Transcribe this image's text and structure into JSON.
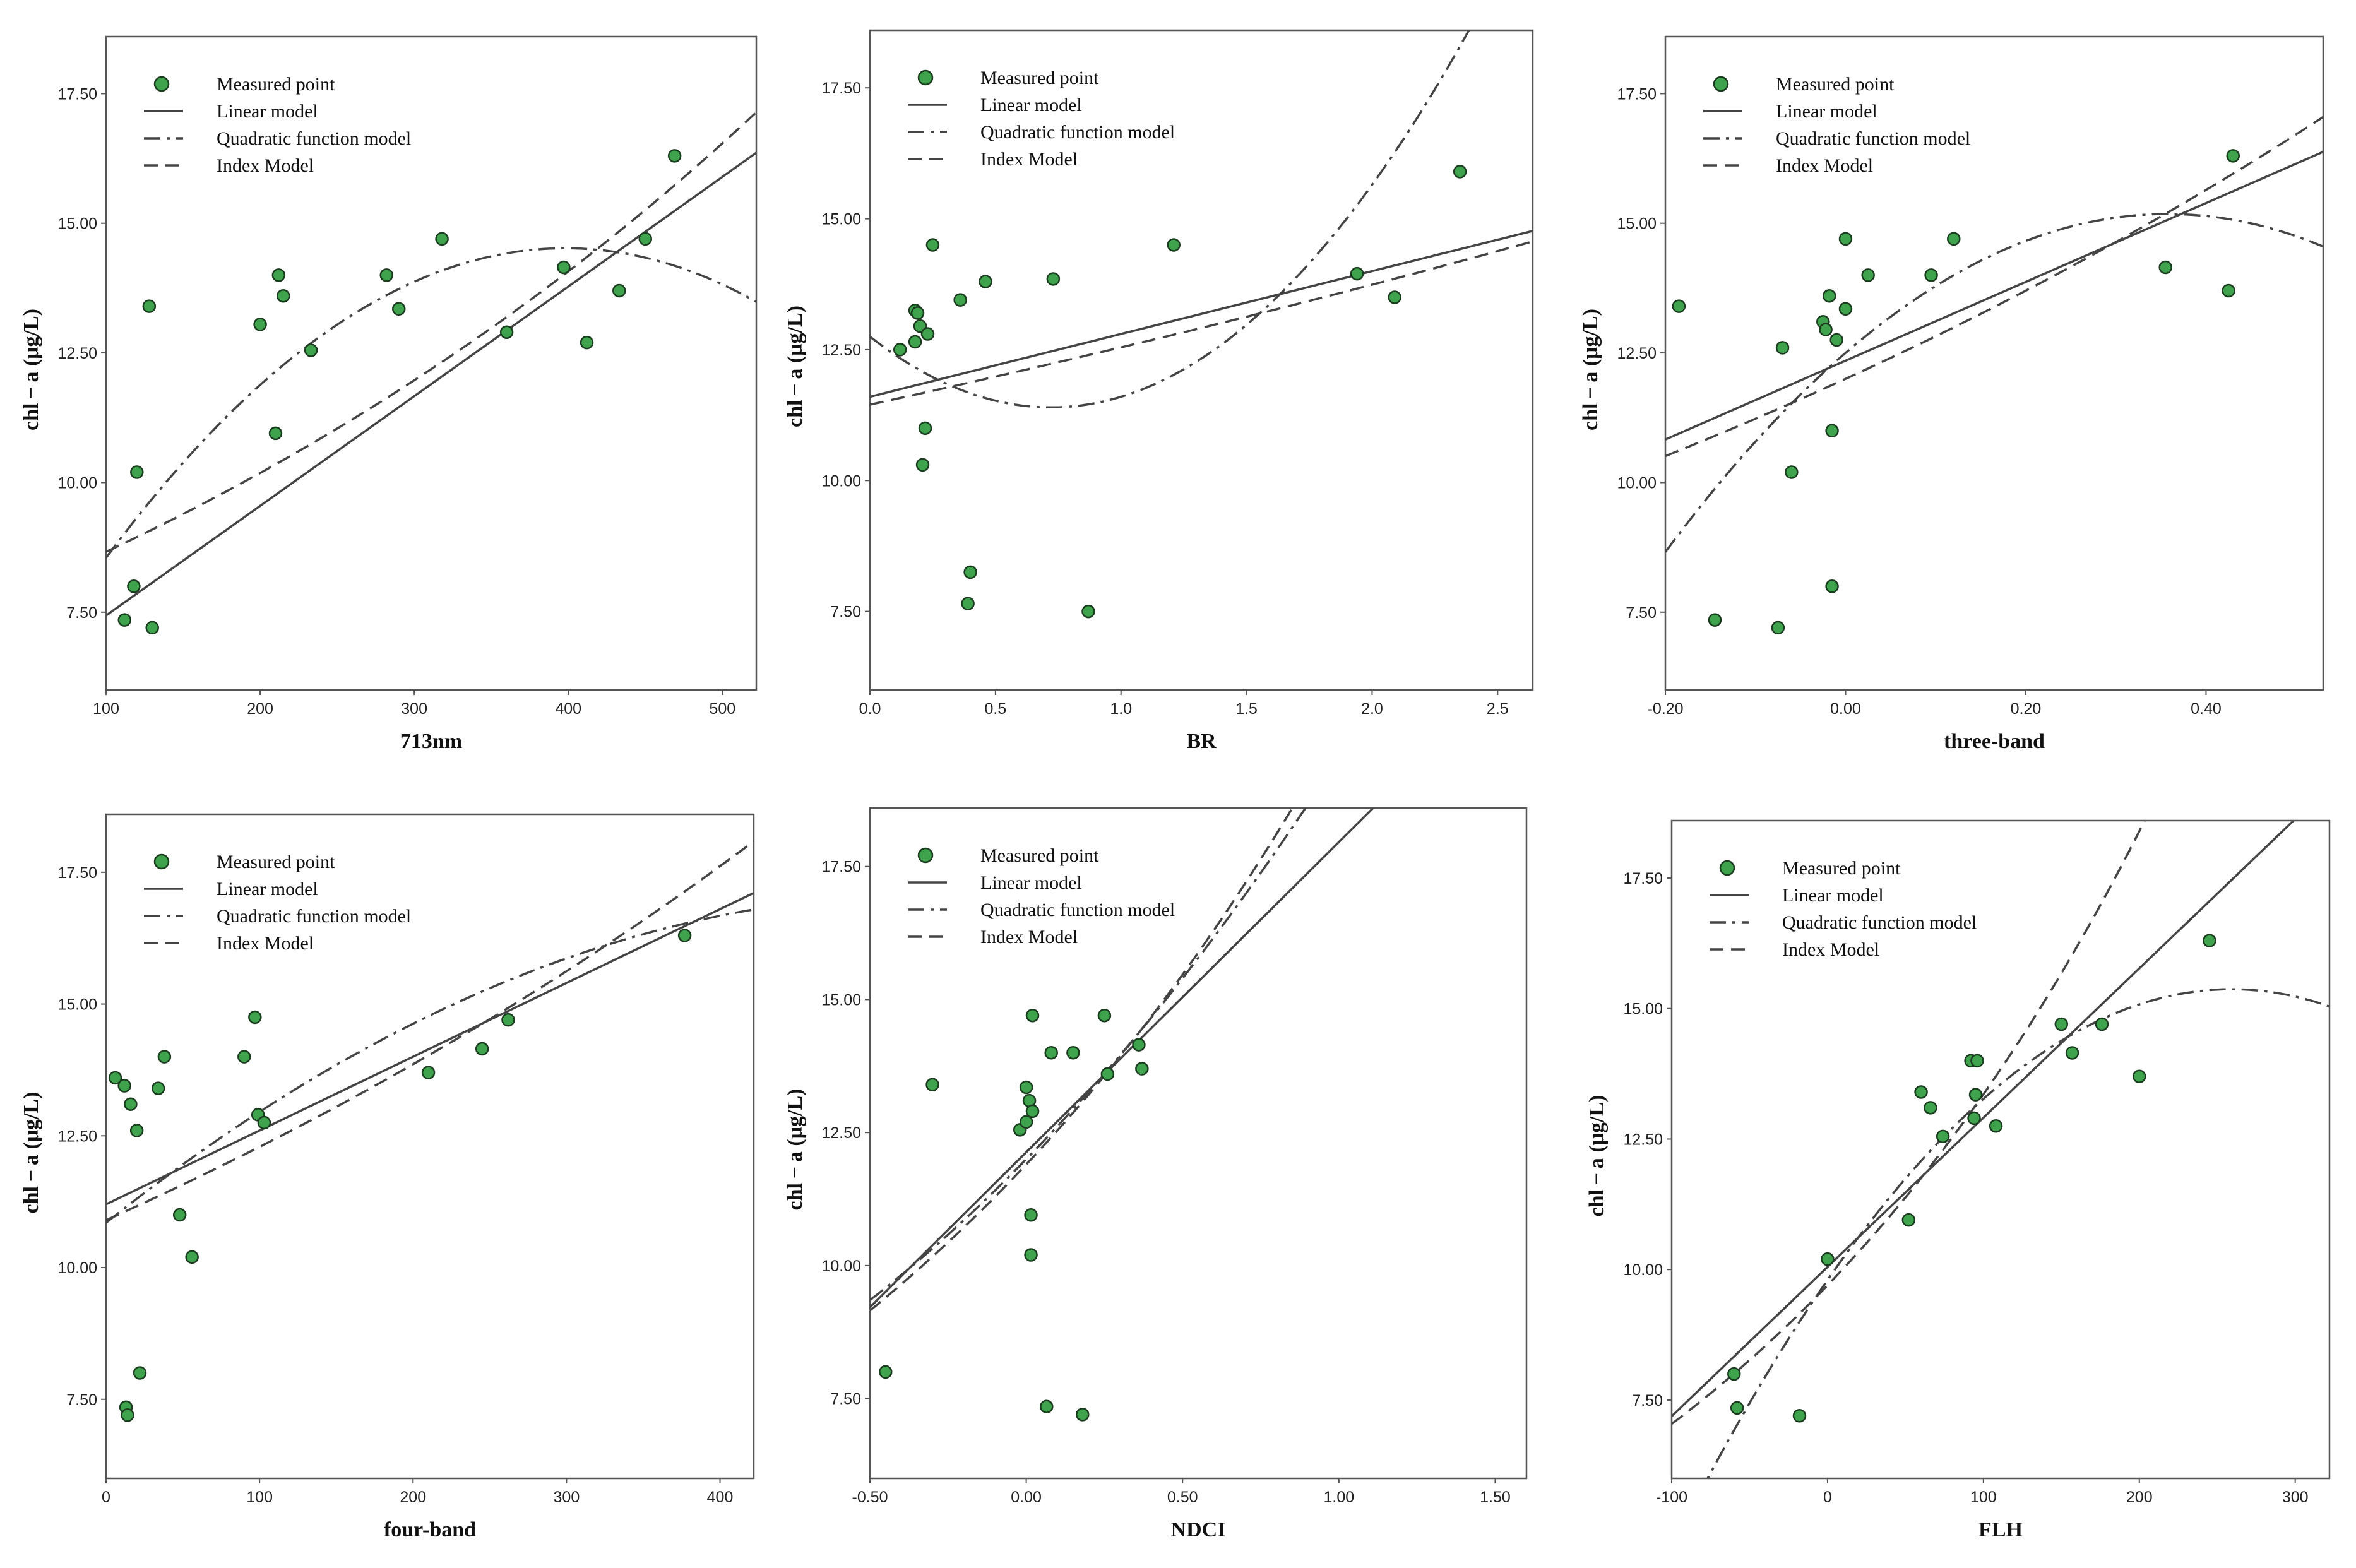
{
  "figure": {
    "legend_labels": [
      "Measured point",
      "Linear model",
      "Quadratic function model",
      "Index Model"
    ],
    "colors": {
      "point_fill": "#3fa34d",
      "point_stroke": "#1b3d1f",
      "line": "#444444",
      "frame": "#555555",
      "grid": "#ffffff"
    }
  },
  "chart_data": [
    {
      "type": "scatter",
      "title": "",
      "xlabel": "713nm",
      "ylabel": "chl − a (μg/L)",
      "xlim": [
        100,
        522
      ],
      "ylim": [
        6.0,
        18.6
      ],
      "xticks": [
        100,
        200,
        300,
        400,
        500
      ],
      "xtick_labels": [
        "100",
        "200",
        "300",
        "400",
        "500"
      ],
      "yticks": [
        7.5,
        10.0,
        12.5,
        15.0,
        17.5
      ],
      "ytick_labels": [
        "7.50",
        "10.00",
        "12.50",
        "15.00",
        "17.50"
      ],
      "legend_position": "top-left",
      "points": {
        "x": [
          112,
          118,
          120,
          128,
          130,
          200,
          210,
          212,
          215,
          233,
          282,
          290,
          318,
          360,
          397,
          412,
          433,
          450,
          469
        ],
        "y": [
          7.35,
          8.0,
          10.2,
          13.4,
          7.2,
          13.05,
          10.95,
          14.0,
          13.6,
          12.55,
          14.0,
          13.35,
          14.7,
          12.9,
          14.15,
          12.7,
          13.7,
          14.7,
          16.3
        ]
      },
      "models": {
        "linear": {
          "a": 5.32,
          "b": 0.02115
        },
        "quadratic": {
          "a": 3.87,
          "b": 0.0535,
          "c": -6.72e-05
        },
        "index": {
          "a": 7.37,
          "b": 0.001617
        }
      }
    },
    {
      "type": "scatter",
      "title": "",
      "xlabel": "BR",
      "ylabel": "chl − a (μg/L)",
      "xlim": [
        0.0,
        2.64
      ],
      "ylim": [
        6.0,
        18.6
      ],
      "xticks": [
        0.0,
        0.5,
        1.0,
        1.5,
        2.0,
        2.5
      ],
      "xtick_labels": [
        "0.0",
        "0.5",
        "1.0",
        "1.5",
        "2.0",
        "2.5"
      ],
      "yticks": [
        7.5,
        10.0,
        12.5,
        15.0,
        17.5
      ],
      "ytick_labels": [
        "7.50",
        "10.00",
        "12.50",
        "15.00",
        "17.50"
      ],
      "legend_position": "top-left",
      "points": {
        "x": [
          0.12,
          0.18,
          0.18,
          0.19,
          0.2,
          0.21,
          0.22,
          0.23,
          0.25,
          0.36,
          0.39,
          0.4,
          0.46,
          0.73,
          0.87,
          1.21,
          1.94,
          2.09,
          2.35
        ],
        "y": [
          12.5,
          13.25,
          12.65,
          13.2,
          12.95,
          10.3,
          11.0,
          12.8,
          14.5,
          13.45,
          7.65,
          8.25,
          13.8,
          13.85,
          7.5,
          14.5,
          13.95,
          13.5,
          15.9
        ]
      },
      "models": {
        "linear": {
          "a": 11.6,
          "b": 1.2
        },
        "quadratic": {
          "a": 12.75,
          "b": -3.75,
          "c": 2.6
        },
        "index": {
          "a": 11.45,
          "b": 0.0912
        }
      }
    },
    {
      "type": "scatter",
      "title": "",
      "xlabel": "three-band",
      "ylabel": "chl − a (μg/L)",
      "xlim": [
        -0.2,
        0.53
      ],
      "ylim": [
        6.0,
        18.6
      ],
      "xticks": [
        -0.2,
        0.0,
        0.2,
        0.4
      ],
      "xtick_labels": [
        "-0.20",
        "0.00",
        "0.20",
        "0.40"
      ],
      "yticks": [
        7.5,
        10.0,
        12.5,
        15.0,
        17.5
      ],
      "ytick_labels": [
        "7.50",
        "10.00",
        "12.50",
        "15.00",
        "17.50"
      ],
      "legend_position": "top-left",
      "points": {
        "x": [
          -0.185,
          -0.145,
          -0.075,
          -0.07,
          -0.06,
          -0.025,
          -0.022,
          -0.018,
          -0.015,
          -0.015,
          -0.01,
          0.0,
          0.0,
          0.025,
          0.095,
          0.12,
          0.355,
          0.425,
          0.43
        ],
        "y": [
          13.4,
          7.35,
          7.2,
          12.6,
          10.2,
          13.1,
          12.95,
          13.6,
          11.0,
          8.0,
          12.75,
          13.35,
          14.7,
          14.0,
          14.0,
          14.7,
          14.15,
          13.7,
          16.3
        ]
      },
      "models": {
        "linear": {
          "a": 12.35,
          "b": 7.6
        },
        "quadratic": {
          "a": 12.5,
          "b": 15.0,
          "c": -21.0
        },
        "index": {
          "a": 12.0,
          "b": 0.6627
        }
      }
    },
    {
      "type": "scatter",
      "title": "",
      "xlabel": "four-band",
      "ylabel": "chl − a (μg/L)",
      "xlim": [
        0,
        422
      ],
      "ylim": [
        6.0,
        18.6
      ],
      "xticks": [
        0,
        100,
        200,
        300,
        400
      ],
      "xtick_labels": [
        "0",
        "100",
        "200",
        "300",
        "400"
      ],
      "yticks": [
        7.5,
        10.0,
        12.5,
        15.0,
        17.5
      ],
      "ytick_labels": [
        "7.50",
        "10.00",
        "12.50",
        "15.00",
        "17.50"
      ],
      "legend_position": "top-left",
      "points": {
        "x": [
          6,
          12,
          13,
          14,
          16,
          20,
          22,
          34,
          38,
          48,
          56,
          90,
          97,
          99,
          103,
          210,
          245,
          262,
          377
        ],
        "y": [
          13.6,
          13.45,
          7.35,
          7.2,
          13.1,
          12.6,
          8.0,
          13.4,
          14.0,
          11.0,
          10.2,
          14.0,
          14.75,
          12.9,
          12.75,
          13.7,
          14.15,
          14.7,
          16.3
        ]
      },
      "models": {
        "linear": {
          "a": 11.2,
          "b": 0.014
        },
        "quadratic": {
          "a": 10.85,
          "b": 0.0232,
          "c": -2.16e-05
        },
        "index": {
          "a": 10.9,
          "b": 0.0012
        }
      }
    },
    {
      "type": "scatter",
      "title": "",
      "xlabel": "NDCI",
      "ylabel": "chl − a (μg/L)",
      "xlim": [
        -0.5,
        1.6
      ],
      "ylim": [
        6.0,
        18.6
      ],
      "xticks": [
        -0.5,
        0.0,
        0.5,
        1.0,
        1.5
      ],
      "xtick_labels": [
        "-0.50",
        "0.00",
        "0.50",
        "1.00",
        "1.50"
      ],
      "yticks": [
        7.5,
        10.0,
        12.5,
        15.0,
        17.5
      ],
      "ytick_labels": [
        "7.50",
        "10.00",
        "12.50",
        "15.00",
        "17.50"
      ],
      "legend_position": "top-left",
      "points": {
        "x": [
          -0.45,
          -0.3,
          -0.02,
          0.0,
          0.0,
          0.01,
          0.015,
          0.015,
          0.02,
          0.02,
          0.065,
          0.08,
          0.15,
          0.18,
          0.25,
          0.26,
          0.36,
          0.37
        ],
        "y": [
          8.0,
          13.4,
          12.55,
          12.7,
          13.35,
          13.1,
          10.95,
          10.2,
          12.9,
          14.7,
          7.35,
          14.0,
          14.0,
          7.2,
          14.7,
          13.6,
          14.15,
          13.7
        ]
      },
      "models": {
        "linear": {
          "a": 12.13,
          "b": 5.83
        },
        "quadratic": {
          "a": 12.0,
          "b": 6.05,
          "c": 1.5
        },
        "index": {
          "a": 11.9,
          "b": 0.5247
        }
      }
    },
    {
      "type": "scatter",
      "title": "",
      "xlabel": "FLH",
      "ylabel": "chl − a (μg/L)",
      "xlim": [
        -100,
        322
      ],
      "ylim": [
        6.0,
        18.6
      ],
      "xticks": [
        -100,
        0,
        100,
        200,
        300
      ],
      "xtick_labels": [
        "-100",
        "0",
        "100",
        "200",
        "300"
      ],
      "yticks": [
        7.5,
        10.0,
        12.5,
        15.0,
        17.5
      ],
      "ytick_labels": [
        "7.50",
        "10.00",
        "12.50",
        "15.00",
        "17.50"
      ],
      "legend_position": "top-left",
      "points": {
        "x": [
          -60,
          -58,
          -18,
          0,
          52,
          60,
          66,
          74,
          92,
          94,
          95,
          96,
          108,
          150,
          157,
          176,
          200,
          245
        ],
        "y": [
          8.0,
          7.35,
          7.2,
          10.2,
          10.95,
          13.4,
          13.1,
          12.55,
          14.0,
          12.9,
          13.35,
          14.0,
          12.75,
          14.7,
          14.15,
          14.7,
          13.7,
          16.3
        ]
      },
      "models": {
        "linear": {
          "a": 10.05,
          "b": 0.0286
        },
        "quadratic": {
          "a": 9.8,
          "b": 0.043,
          "c": -8.3e-05
        },
        "index": {
          "a": 9.7,
          "b": 0.0032
        }
      }
    }
  ]
}
